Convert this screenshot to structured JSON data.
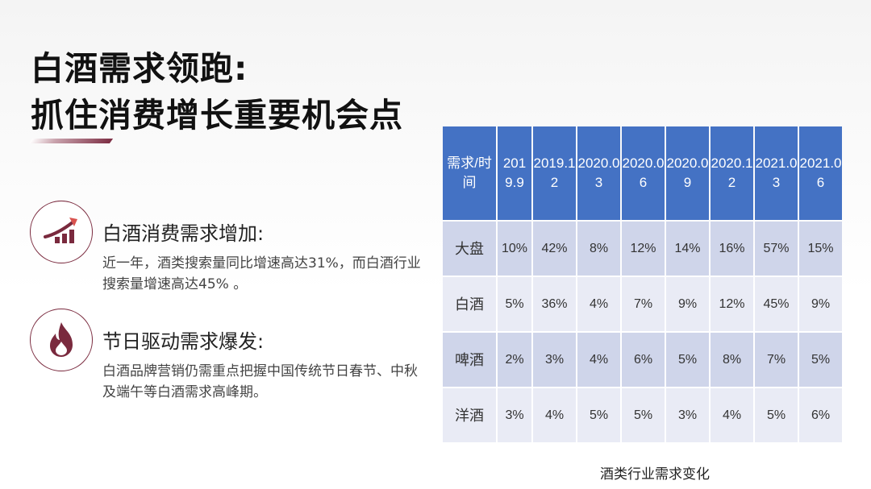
{
  "title": {
    "line1": "白酒需求领跑:",
    "line2": "抓住消费增长重要机会点"
  },
  "features": [
    {
      "icon": "growth-chart-icon",
      "title": "白酒消费需求增加:",
      "desc": "近一年，酒类搜索量同比增速高达31%，而白酒行业搜索量增速高达45% 。"
    },
    {
      "icon": "flame-icon",
      "title": "节日驱动需求爆发:",
      "desc": "白酒品牌营销仍需重点把握中国传统节日春节、中秋及端午等白酒需求高峰期。"
    }
  ],
  "colors": {
    "accent": "#7a2a3e",
    "table_header": "#4472c4",
    "table_row_dark": "#cfd5ea",
    "table_row_light": "#e9ebf5"
  },
  "table": {
    "headers": [
      "需求/时间",
      "2019.9",
      "2019.12",
      "2020.03",
      "2020.06",
      "2020.09",
      "2020.12",
      "2021.03",
      "2021.06"
    ],
    "rows": [
      [
        "大盘",
        "10%",
        "42%",
        "8%",
        "12%",
        "14%",
        "16%",
        "57%",
        "15%"
      ],
      [
        "白酒",
        "5%",
        "36%",
        "4%",
        "7%",
        "9%",
        "12%",
        "45%",
        "9%"
      ],
      [
        "啤酒",
        "2%",
        "3%",
        "4%",
        "6%",
        "5%",
        "8%",
        "7%",
        "5%"
      ],
      [
        "洋酒",
        "3%",
        "4%",
        "5%",
        "5%",
        "3%",
        "4%",
        "5%",
        "6%"
      ]
    ],
    "caption": "酒类行业需求变化"
  }
}
